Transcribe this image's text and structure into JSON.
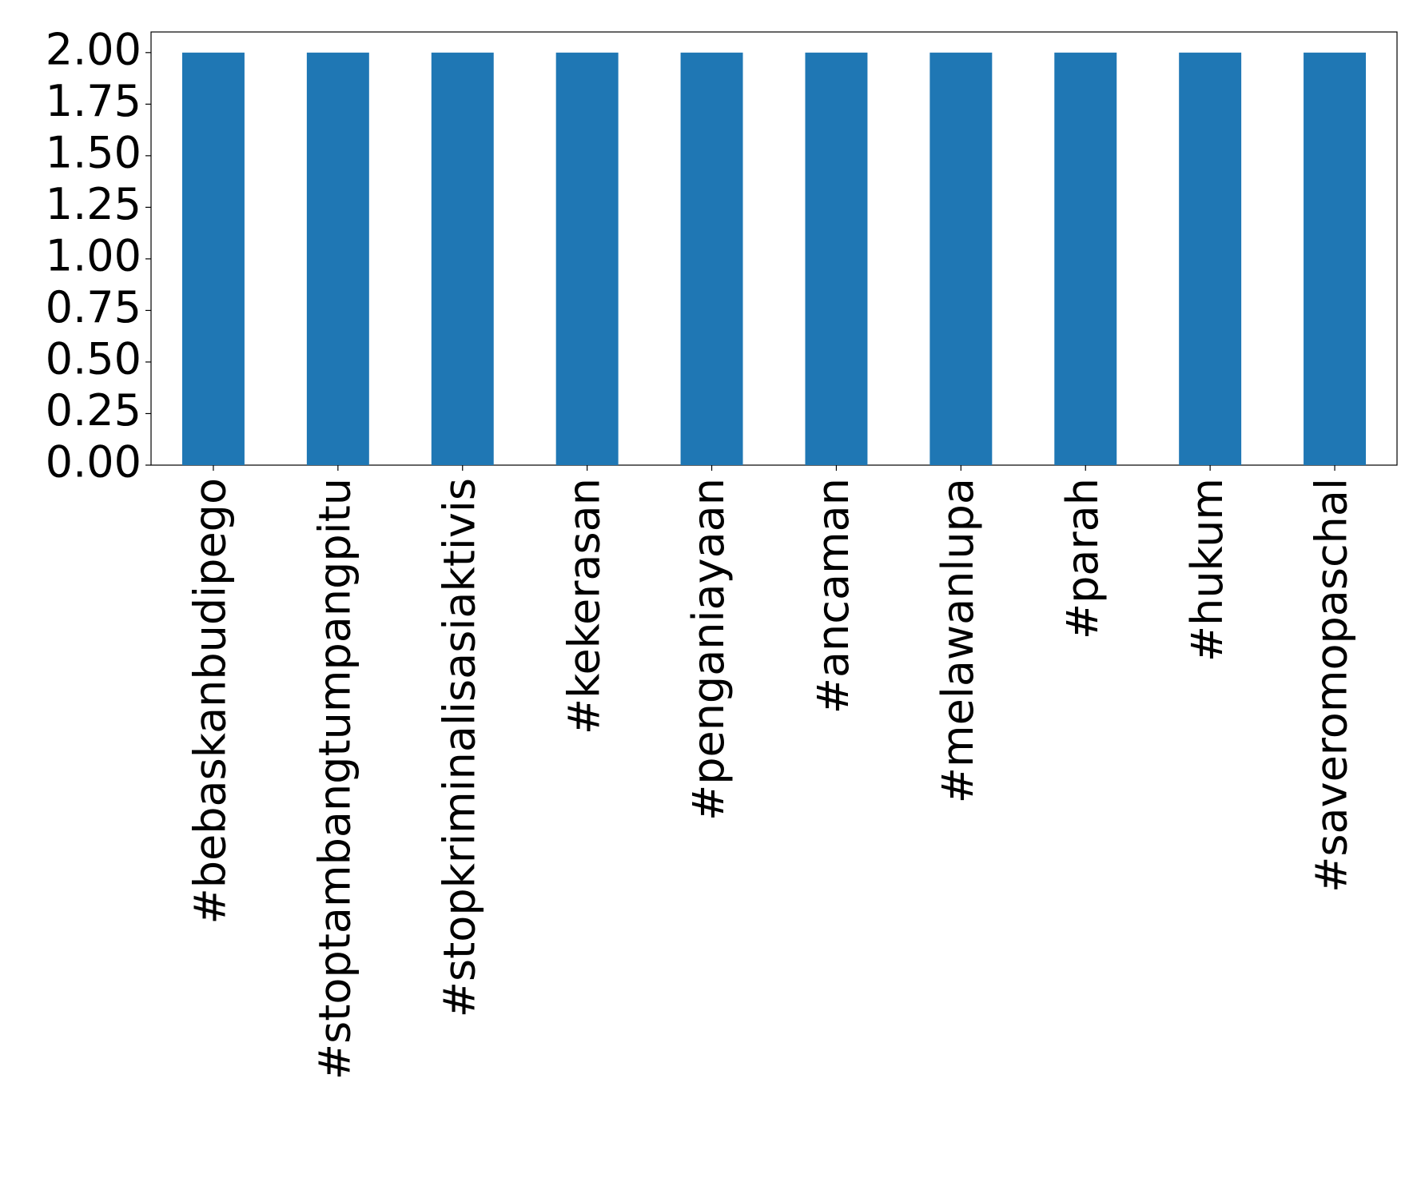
{
  "chart_data": {
    "type": "bar",
    "categories": [
      "#bebaskanbudipego",
      "#stoptambangtumpangpitu",
      "#stopkriminalisasiaktivis",
      "#kekerasan",
      "#penganiayaan",
      "#ancaman",
      "#melawanlupa",
      "#parah",
      "#hukum",
      "#saveromopaschal"
    ],
    "values": [
      2,
      2,
      2,
      2,
      2,
      2,
      2,
      2,
      2,
      2
    ],
    "color": "#1f77b4",
    "ylim": [
      0,
      2.1
    ],
    "yticks": [
      {
        "value": 0,
        "label": "0.00"
      },
      {
        "value": 0.25,
        "label": "0.25"
      },
      {
        "value": 0.5,
        "label": "0.50"
      },
      {
        "value": 0.75,
        "label": "0.75"
      },
      {
        "value": 1,
        "label": "1.00"
      },
      {
        "value": 1.25,
        "label": "1.25"
      },
      {
        "value": 1.5,
        "label": "1.50"
      },
      {
        "value": 1.75,
        "label": "1.75"
      },
      {
        "value": 2,
        "label": "2.00"
      }
    ],
    "grid": false
  }
}
